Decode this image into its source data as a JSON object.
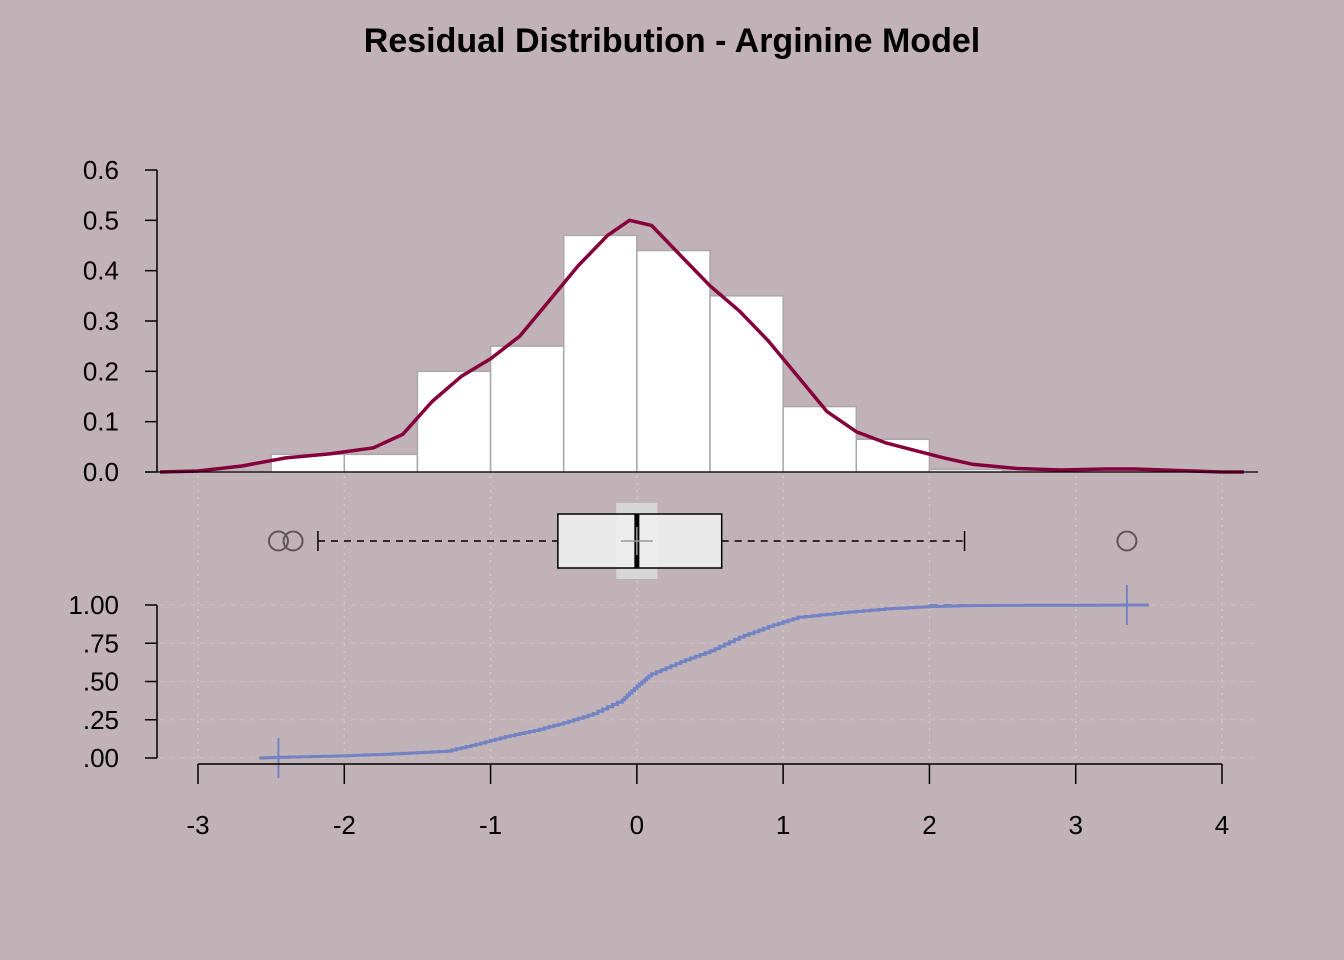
{
  "chart_data": {
    "type": "histogram-boxplot-ecdf",
    "title": "Residual Distribution - Arginine Model",
    "xlim": [
      -3.3,
      4.2
    ],
    "x_ticks": [
      "-3",
      "-2",
      "-1",
      "0",
      "1",
      "2",
      "3",
      "4"
    ],
    "x_tick_values": [
      -3,
      -2,
      -1,
      0,
      1,
      2,
      3,
      4
    ],
    "colors": {
      "background": "#c1b2b8",
      "density": "#85003a",
      "bars": "#ffffff",
      "bar_border": "#a8a8a8",
      "ecdf": "#7183c4",
      "grid": "#d6cdd1"
    },
    "histogram": {
      "ylim": [
        0,
        0.6
      ],
      "y_ticks": [
        "0.0",
        "0.1",
        "0.2",
        "0.3",
        "0.4",
        "0.5",
        "0.6"
      ],
      "y_tick_values": [
        0,
        0.1,
        0.2,
        0.3,
        0.4,
        0.5,
        0.6
      ],
      "bins": [
        {
          "x0": -2.5,
          "x1": -2.0,
          "density": 0.035
        },
        {
          "x0": -2.0,
          "x1": -1.5,
          "density": 0.035
        },
        {
          "x0": -1.5,
          "x1": -1.0,
          "density": 0.2
        },
        {
          "x0": -1.0,
          "x1": -0.5,
          "density": 0.25
        },
        {
          "x0": -0.5,
          "x1": 0.0,
          "density": 0.47
        },
        {
          "x0": 0.0,
          "x1": 0.5,
          "density": 0.44
        },
        {
          "x0": 0.5,
          "x1": 1.0,
          "density": 0.35
        },
        {
          "x0": 1.0,
          "x1": 1.5,
          "density": 0.13
        },
        {
          "x0": 1.5,
          "x1": 2.0,
          "density": 0.065
        },
        {
          "x0": 2.0,
          "x1": 2.5,
          "density": 0.005
        }
      ],
      "density_curve": [
        [
          -3.3,
          0.0
        ],
        [
          -3.0,
          0.002
        ],
        [
          -2.7,
          0.012
        ],
        [
          -2.4,
          0.028
        ],
        [
          -2.1,
          0.036
        ],
        [
          -1.8,
          0.048
        ],
        [
          -1.6,
          0.075
        ],
        [
          -1.4,
          0.14
        ],
        [
          -1.2,
          0.19
        ],
        [
          -1.0,
          0.225
        ],
        [
          -0.8,
          0.27
        ],
        [
          -0.6,
          0.34
        ],
        [
          -0.4,
          0.41
        ],
        [
          -0.2,
          0.47
        ],
        [
          -0.05,
          0.5
        ],
        [
          0.1,
          0.49
        ],
        [
          0.3,
          0.43
        ],
        [
          0.5,
          0.37
        ],
        [
          0.7,
          0.32
        ],
        [
          0.9,
          0.26
        ],
        [
          1.1,
          0.19
        ],
        [
          1.3,
          0.12
        ],
        [
          1.5,
          0.08
        ],
        [
          1.7,
          0.058
        ],
        [
          1.9,
          0.043
        ],
        [
          2.1,
          0.028
        ],
        [
          2.3,
          0.015
        ],
        [
          2.6,
          0.007
        ],
        [
          2.9,
          0.004
        ],
        [
          3.2,
          0.006
        ],
        [
          3.4,
          0.006
        ],
        [
          3.7,
          0.003
        ],
        [
          4.0,
          0.0
        ],
        [
          4.15,
          0.0
        ]
      ]
    },
    "boxplot": {
      "q1": -0.54,
      "median": 0.0,
      "q3": 0.58,
      "whisker_low": -2.18,
      "whisker_high": 2.24,
      "outliers": [
        -2.45,
        -2.35,
        3.35
      ],
      "mean": 0.0,
      "notch_low": -0.12,
      "notch_high": 0.12
    },
    "ecdf": {
      "ylim": [
        0,
        1
      ],
      "y_ticks": [
        ".00",
        ".25",
        ".50",
        ".75",
        "1.00"
      ],
      "y_tick_values": [
        0,
        0.25,
        0.5,
        0.75,
        1.0
      ],
      "points": [
        [
          -2.58,
          0.0
        ],
        [
          -2.45,
          0.005
        ],
        [
          -2.0,
          0.015
        ],
        [
          -1.6,
          0.03
        ],
        [
          -1.3,
          0.045
        ],
        [
          -1.1,
          0.09
        ],
        [
          -0.9,
          0.14
        ],
        [
          -0.7,
          0.18
        ],
        [
          -0.5,
          0.23
        ],
        [
          -0.3,
          0.29
        ],
        [
          -0.1,
          0.38
        ],
        [
          0.0,
          0.47
        ],
        [
          0.1,
          0.55
        ],
        [
          0.3,
          0.63
        ],
        [
          0.5,
          0.7
        ],
        [
          0.7,
          0.79
        ],
        [
          0.9,
          0.86
        ],
        [
          1.1,
          0.92
        ],
        [
          1.4,
          0.95
        ],
        [
          1.7,
          0.975
        ],
        [
          2.0,
          0.99
        ],
        [
          2.3,
          0.997
        ],
        [
          3.35,
          1.0
        ],
        [
          3.5,
          1.0
        ]
      ],
      "min_marker": -2.45,
      "max_marker": 3.35
    }
  }
}
